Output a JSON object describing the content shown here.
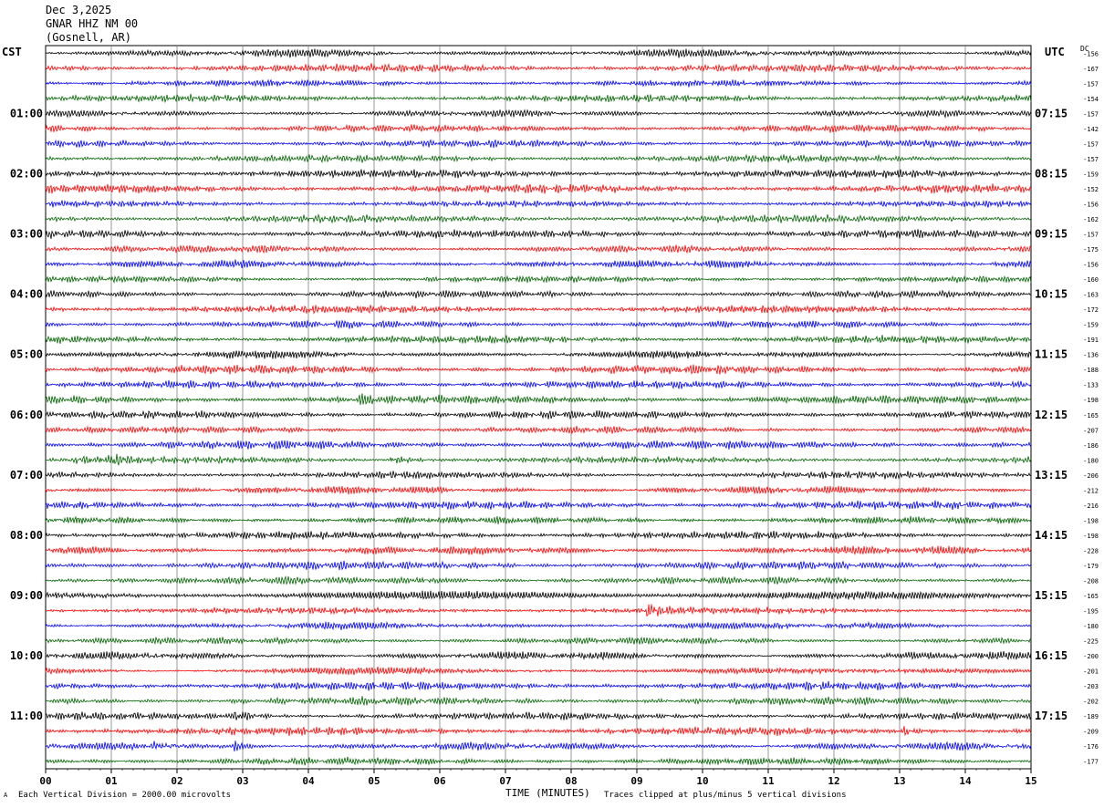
{
  "header": {
    "date": "Dec 3,2025",
    "station": "GNAR HHZ NM 00",
    "location": "(Gosnell, AR)"
  },
  "left_label": "CST",
  "right_label": "UTC",
  "dc_label": "DC",
  "footer": {
    "scale_note": "Each Vertical Division = 2000.00 microvolts",
    "clip_note": "Traces clipped at plus/minus 5 vertical divisions",
    "mark": "A"
  },
  "colors": {
    "trace_cycle": [
      "#000000",
      "#ff0000",
      "#0000ff",
      "#006400"
    ],
    "grid": "#808080"
  },
  "chart_data": {
    "type": "line",
    "title": "Dec 3,2025 GNAR HHZ NM 00 (Gosnell, AR)",
    "xlabel": "TIME (MINUTES)",
    "x_ticks": [
      "00",
      "01",
      "02",
      "03",
      "04",
      "05",
      "06",
      "07",
      "08",
      "09",
      "10",
      "11",
      "12",
      "13",
      "14",
      "15"
    ],
    "xlim": [
      0,
      15
    ],
    "rows_per_hour": 4,
    "minutes_per_row": 15,
    "row_count": 48,
    "left_time_labels": [
      "01:00",
      "02:00",
      "03:00",
      "04:00",
      "05:00",
      "06:00",
      "07:00",
      "08:00",
      "09:00",
      "10:00",
      "11:00"
    ],
    "right_time_labels": [
      "07:15",
      "08:15",
      "09:15",
      "10:15",
      "11:15",
      "12:15",
      "13:15",
      "14:15",
      "15:15",
      "16:15",
      "17:15"
    ],
    "dc_offsets": [
      "-156",
      "-167",
      "-157",
      "-154",
      "-157",
      "-142",
      "-157",
      "-157",
      "-159",
      "-152",
      "-156",
      "-162",
      "-157",
      "-175",
      "-156",
      "-160",
      "-163",
      "-172",
      "-159",
      "-191",
      "-136",
      "-188",
      "-133",
      "-198",
      "-165",
      "-207",
      "-186",
      "-180",
      "-206",
      "-212",
      "-216",
      "-198",
      "-198",
      "-228",
      "-179",
      "-208",
      "-165",
      "-195",
      "-180",
      "-225",
      "-200",
      "-201",
      "-203",
      "-202",
      "-189",
      "-209",
      "-176",
      "-177"
    ],
    "events": [
      {
        "row": 27,
        "minute": 5.3,
        "strength": 3.2
      },
      {
        "row": 27,
        "minute": 1.0,
        "strength": 1.6
      },
      {
        "row": 27,
        "minute": 0.5,
        "strength": 1.4
      },
      {
        "row": 35,
        "minute": 5.7,
        "strength": 1.8
      },
      {
        "row": 37,
        "minute": 9.2,
        "strength": 1.8
      },
      {
        "row": 44,
        "minute": 2.9,
        "strength": 2.0
      },
      {
        "row": 45,
        "minute": 13.1,
        "strength": 1.6
      },
      {
        "row": 46,
        "minute": 2.9,
        "strength": 2.0
      },
      {
        "row": 46,
        "minute": 1.7,
        "strength": 1.5
      },
      {
        "row": 23,
        "minute": 4.8,
        "strength": 1.4
      }
    ]
  }
}
